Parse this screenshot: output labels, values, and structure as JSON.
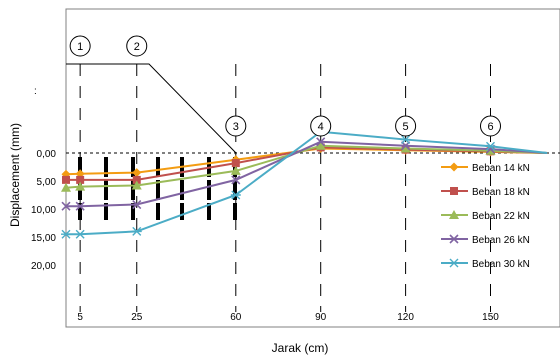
{
  "chart_data": {
    "type": "line",
    "xlabel": "Jarak (cm)",
    "ylabel": "Displacement (mm)",
    "y_ticks": [
      "0,00",
      "5,00",
      "10,00",
      "15,00",
      "20,00"
    ],
    "x_tick_labels": [
      "5",
      "25",
      "60",
      "90",
      "120",
      "150"
    ],
    "stray_mark": ":",
    "x": [
      0,
      5,
      25,
      60,
      90,
      120,
      150,
      170
    ],
    "ylim": [
      0,
      20
    ],
    "markers": [
      {
        "label": "1",
        "x": 5
      },
      {
        "label": "2",
        "x": 25
      },
      {
        "label": "3",
        "x": 60
      },
      {
        "label": "4",
        "x": 90
      },
      {
        "label": "5",
        "x": 120
      },
      {
        "label": "6",
        "x": 150
      }
    ],
    "series": [
      {
        "name": "Beban 14  kN",
        "color": "#f39c12",
        "marker": "diamond",
        "values": [
          3.8,
          3.7,
          3.5,
          1.2,
          -0.8,
          -0.5,
          -0.2,
          0.0
        ]
      },
      {
        "name": "Beban 18 kN",
        "color": "#c0504d",
        "marker": "square",
        "values": [
          4.8,
          4.8,
          4.8,
          1.8,
          -1.0,
          -0.6,
          -0.3,
          0.0
        ]
      },
      {
        "name": "Beban 22 kN",
        "color": "#9bbb59",
        "marker": "triangle",
        "values": [
          6.2,
          6.0,
          5.8,
          3.2,
          -1.3,
          -0.8,
          -0.4,
          0.0
        ]
      },
      {
        "name": "Beban 26 kN",
        "color": "#8064a2",
        "marker": "x",
        "values": [
          9.5,
          9.5,
          9.2,
          4.8,
          -2.0,
          -1.3,
          -0.7,
          0.0
        ]
      },
      {
        "name": "Beban 30 kN",
        "color": "#4bacc6",
        "marker": "asterisk",
        "values": [
          14.5,
          14.5,
          14.0,
          7.5,
          -3.8,
          -2.4,
          -1.2,
          0.0
        ]
      }
    ],
    "legend": "right",
    "grid": false
  }
}
